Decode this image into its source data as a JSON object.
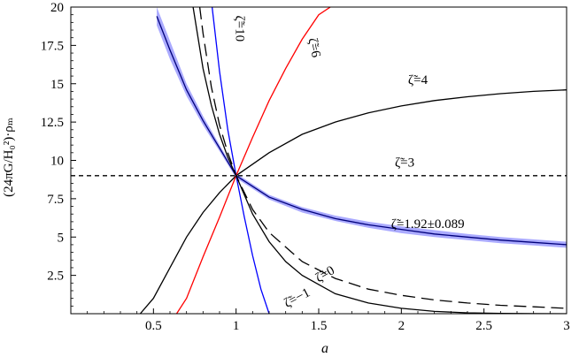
{
  "chart_data": {
    "type": "line",
    "xlabel": "a",
    "ylabel": "(24πG/H₀²)·ρₘ",
    "xlim": [
      0,
      3
    ],
    "ylim": [
      0,
      20
    ],
    "x_ticks": [
      0.5,
      1,
      1.5,
      2,
      2.5,
      3
    ],
    "x_tick_labels": [
      "0.5",
      "1",
      "1.5",
      "2",
      "2.5",
      "3"
    ],
    "y_ticks": [
      2.5,
      5,
      7.5,
      10,
      12.5,
      15,
      17.5,
      20
    ],
    "y_tick_labels": [
      "2.5",
      "5",
      "7.5",
      "10",
      "12.5",
      "15",
      "17.5",
      "20"
    ],
    "grid": false,
    "legend": "none",
    "band": {
      "center_series": "ζ̃=1.92±0.089",
      "color": "#aaaaff",
      "x": [
        0.52,
        0.6,
        0.7,
        0.8,
        0.9,
        1.0,
        1.2,
        1.4,
        1.6,
        1.8,
        2.0,
        2.2,
        2.4,
        2.6,
        2.8,
        3.0
      ],
      "y_low": [
        18.8,
        16.6,
        14.2,
        12.3,
        10.6,
        8.85,
        7.45,
        6.6,
        6.05,
        5.6,
        5.25,
        5.0,
        4.8,
        4.6,
        4.45,
        4.3
      ],
      "y_high": [
        20.0,
        17.8,
        15.0,
        12.9,
        11.0,
        9.15,
        7.75,
        6.95,
        6.4,
        6.0,
        5.7,
        5.45,
        5.2,
        5.0,
        4.85,
        4.7
      ]
    },
    "series": [
      {
        "name": "ζ̃=1.92±0.089",
        "color": "#00007a",
        "dash": "none",
        "x": [
          0.52,
          0.6,
          0.7,
          0.8,
          0.9,
          1.0,
          1.2,
          1.4,
          1.6,
          1.8,
          2.0,
          2.2,
          2.4,
          2.6,
          2.8,
          3.0
        ],
        "y": [
          19.4,
          17.2,
          14.6,
          12.6,
          10.8,
          9.0,
          7.6,
          6.8,
          6.2,
          5.8,
          5.5,
          5.2,
          5.0,
          4.8,
          4.65,
          4.5
        ]
      },
      {
        "name": "ζ̃=3",
        "color": "#000000",
        "dash": "5,4",
        "x": [
          0.0,
          3.0
        ],
        "y": [
          9.0,
          9.0
        ]
      },
      {
        "name": "ζ̃=4",
        "color": "#000000",
        "dash": "none",
        "x": [
          0.42,
          0.5,
          0.6,
          0.7,
          0.8,
          0.9,
          1.0,
          1.2,
          1.4,
          1.6,
          1.8,
          2.0,
          2.2,
          2.4,
          2.6,
          2.8,
          3.0
        ],
        "y": [
          0.0,
          1.0,
          3.0,
          5.0,
          6.6,
          7.9,
          9.0,
          10.5,
          11.7,
          12.5,
          13.1,
          13.55,
          13.9,
          14.15,
          14.35,
          14.5,
          14.6
        ]
      },
      {
        "name": "ζ̃=6",
        "color": "#ff0000",
        "dash": "none",
        "x": [
          0.64,
          0.7,
          0.8,
          0.9,
          1.0,
          1.1,
          1.2,
          1.3,
          1.4,
          1.5,
          1.57
        ],
        "y": [
          0.0,
          1.0,
          3.7,
          6.3,
          9.0,
          11.5,
          13.9,
          16.0,
          17.9,
          19.5,
          20.0
        ]
      },
      {
        "name": "ζ̃=10",
        "color": "#0000ff",
        "dash": "none",
        "x": [
          0.855,
          0.9,
          0.95,
          1.0,
          1.05,
          1.1,
          1.15,
          1.2
        ],
        "y": [
          20.0,
          15.8,
          12.0,
          9.0,
          6.3,
          3.8,
          1.6,
          0.0
        ]
      },
      {
        "name": "ζ̃=0",
        "color": "#000000",
        "dash": "14,7",
        "x": [
          0.78,
          0.8,
          0.85,
          0.9,
          0.95,
          1.0,
          1.1,
          1.2,
          1.4,
          1.6,
          1.8,
          2.0,
          2.2,
          2.4,
          2.6,
          2.8,
          3.0
        ],
        "y": [
          20.0,
          18.3,
          14.8,
          12.3,
          10.5,
          9.0,
          6.8,
          5.3,
          3.4,
          2.3,
          1.6,
          1.2,
          0.9,
          0.7,
          0.55,
          0.45,
          0.35
        ]
      },
      {
        "name": "ζ̃=−1",
        "color": "#000000",
        "dash": "none",
        "x": [
          0.74,
          0.8,
          0.85,
          0.9,
          0.95,
          1.0,
          1.1,
          1.2,
          1.3,
          1.4,
          1.6,
          1.8,
          2.0,
          2.2,
          2.4,
          2.6,
          2.8,
          3.0
        ],
        "y": [
          20.0,
          16.0,
          13.6,
          11.7,
          10.2,
          9.0,
          6.5,
          4.7,
          3.4,
          2.5,
          1.3,
          0.7,
          0.35,
          0.15,
          0.06,
          0.02,
          0.005,
          0.0
        ]
      }
    ],
    "annotations": [
      {
        "text": "ζ̃=4",
        "x": 2.1,
        "y": 15.0
      },
      {
        "text": "ζ̃=3",
        "x": 2.02,
        "y": 9.6
      },
      {
        "text": "ζ̃=1.92±0.089",
        "x": 2.16,
        "y": 5.6
      },
      {
        "text": "ζ̃=6",
        "x": 1.45,
        "y": 17.3,
        "rotate": 78
      },
      {
        "text": "ζ̃=10",
        "x": 1.0,
        "y": 18.6,
        "rotate": 90
      },
      {
        "text": "ζ̃=0",
        "x": 1.55,
        "y": 2.35,
        "rotate": -30
      },
      {
        "text": "ζ̃=−1",
        "x": 1.38,
        "y": 0.8,
        "rotate": -28
      }
    ]
  }
}
